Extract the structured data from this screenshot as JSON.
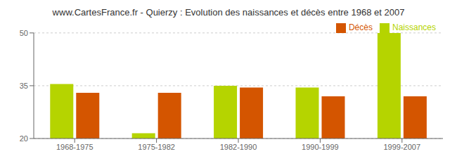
{
  "chart_data": {
    "type": "bar",
    "title": "www.CartesFrance.fr - Quierzy : Evolution des naissances et décès entre 1968 et 2007",
    "categories": [
      "1968-1975",
      "1975-1982",
      "1982-1990",
      "1990-1999",
      "1999-2007"
    ],
    "series": [
      {
        "name": "Naissances",
        "color": "#b5d400",
        "values": [
          35.5,
          21.5,
          35.0,
          34.5,
          50.0
        ]
      },
      {
        "name": "Décès",
        "color": "#d45500",
        "values": [
          33.0,
          33.0,
          34.5,
          32.0,
          32.0
        ]
      }
    ],
    "ylim": [
      20,
      50
    ],
    "yticks": [
      20,
      35,
      50
    ],
    "grid": true,
    "legend": "upper right"
  }
}
